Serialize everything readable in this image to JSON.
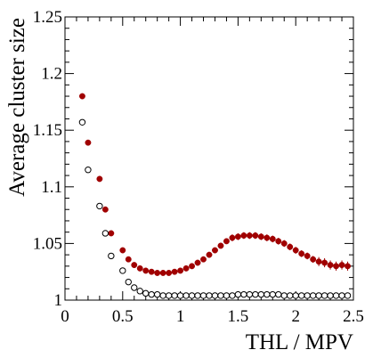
{
  "chart_data": {
    "type": "scatter",
    "xlabel": "THL / MPV",
    "ylabel": "Average cluster size",
    "xlim": [
      0,
      2.5
    ],
    "ylim": [
      1,
      1.25
    ],
    "grid": false,
    "x_ticks": [
      {
        "value": 0,
        "label": "0"
      },
      {
        "value": 0.5,
        "label": "0.5"
      },
      {
        "value": 1,
        "label": "1"
      },
      {
        "value": 1.5,
        "label": "1.5"
      },
      {
        "value": 2,
        "label": "2"
      },
      {
        "value": 2.5,
        "label": "2.5"
      }
    ],
    "y_ticks": [
      {
        "value": 1,
        "label": "1"
      },
      {
        "value": 1.05,
        "label": "1.05"
      },
      {
        "value": 1.1,
        "label": "1.1"
      },
      {
        "value": 1.15,
        "label": "1.15"
      },
      {
        "value": 1.2,
        "label": "1.2"
      },
      {
        "value": 1.25,
        "label": "1.25"
      }
    ],
    "series": [
      {
        "marker": "filled-circle",
        "color": "#a00000",
        "x": [
          0.15,
          0.2,
          0.3,
          0.35,
          0.4,
          0.5,
          0.55,
          0.6,
          0.65,
          0.7,
          0.75,
          0.8,
          0.85,
          0.9,
          0.95,
          1.0,
          1.05,
          1.1,
          1.15,
          1.2,
          1.25,
          1.3,
          1.35,
          1.4,
          1.45,
          1.5,
          1.55,
          1.6,
          1.65,
          1.7,
          1.75,
          1.8,
          1.85,
          1.9,
          1.95,
          2.0,
          2.05,
          2.1,
          2.15,
          2.2,
          2.25,
          2.3,
          2.35,
          2.4,
          2.45
        ],
        "y": [
          1.18,
          1.139,
          1.107,
          1.08,
          1.059,
          1.044,
          1.036,
          1.031,
          1.028,
          1.026,
          1.025,
          1.024,
          1.024,
          1.024,
          1.025,
          1.026,
          1.028,
          1.03,
          1.033,
          1.036,
          1.04,
          1.044,
          1.048,
          1.052,
          1.055,
          1.056,
          1.057,
          1.057,
          1.057,
          1.056,
          1.055,
          1.054,
          1.052,
          1.05,
          1.047,
          1.044,
          1.041,
          1.039,
          1.036,
          1.034,
          1.033,
          1.031,
          1.03,
          1.031,
          1.03
        ],
        "error": [
          0.001,
          0.001,
          0.001,
          0.001,
          0.001,
          0.001,
          0.001,
          0.001,
          0.001,
          0.001,
          0.001,
          0.001,
          0.001,
          0.001,
          0.001,
          0.001,
          0.001,
          0.001,
          0.002,
          0.002,
          0.002,
          0.002,
          0.002,
          0.002,
          0.003,
          0.003,
          0.003,
          0.003,
          0.003,
          0.003,
          0.003,
          0.003,
          0.003,
          0.003,
          0.003,
          0.003,
          0.003,
          0.003,
          0.003,
          0.004,
          0.004,
          0.004,
          0.004,
          0.004,
          0.004
        ]
      },
      {
        "marker": "open-circle",
        "color": "#000000",
        "x": [
          0.15,
          0.2,
          0.3,
          0.35,
          0.4,
          0.5,
          0.55,
          0.6,
          0.65,
          0.7,
          0.75,
          0.8,
          0.85,
          0.9,
          0.95,
          1.0,
          1.05,
          1.1,
          1.15,
          1.2,
          1.25,
          1.3,
          1.35,
          1.4,
          1.45,
          1.5,
          1.55,
          1.6,
          1.65,
          1.7,
          1.75,
          1.8,
          1.85,
          1.9,
          1.95,
          2.0,
          2.05,
          2.1,
          2.15,
          2.2,
          2.25,
          2.3,
          2.35,
          2.4,
          2.45
        ],
        "y": [
          1.157,
          1.115,
          1.083,
          1.059,
          1.039,
          1.026,
          1.016,
          1.011,
          1.008,
          1.006,
          1.005,
          1.005,
          1.004,
          1.004,
          1.004,
          1.004,
          1.004,
          1.004,
          1.004,
          1.004,
          1.004,
          1.004,
          1.004,
          1.004,
          1.004,
          1.005,
          1.005,
          1.005,
          1.005,
          1.005,
          1.005,
          1.005,
          1.005,
          1.004,
          1.004,
          1.004,
          1.004,
          1.004,
          1.004,
          1.004,
          1.004,
          1.004,
          1.004,
          1.004,
          1.004
        ]
      }
    ]
  }
}
